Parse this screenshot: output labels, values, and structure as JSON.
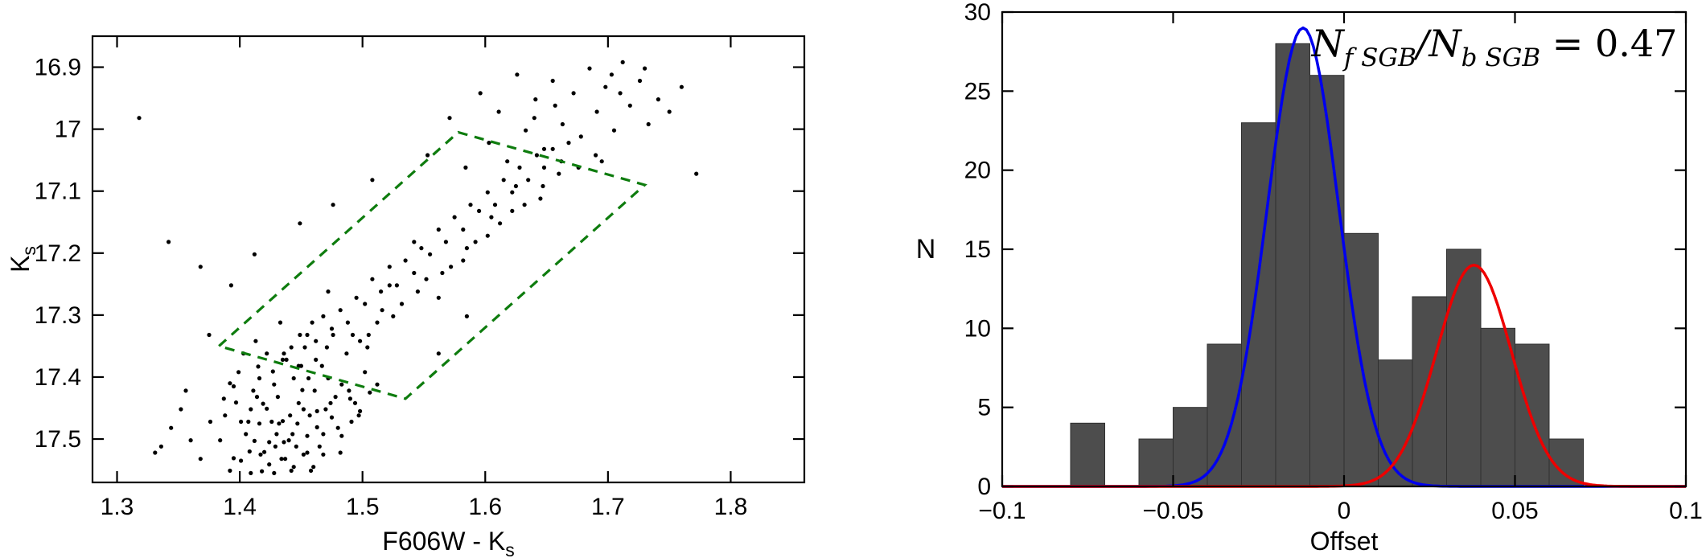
{
  "figure": {
    "background": "#ffffff"
  },
  "chart_data": [
    {
      "id": "cmd",
      "type": "scatter",
      "title": "",
      "xlabel_pre": "F606W - K",
      "xlabel_sub": "s",
      "ylabel_pre": "K",
      "ylabel_sub": "s",
      "xlim": [
        1.28,
        1.86
      ],
      "ylim": [
        16.85,
        17.57
      ],
      "y_axis_inverted": true,
      "x_ticks": [
        1.3,
        1.4,
        1.5,
        1.6,
        1.7,
        1.8
      ],
      "x_tick_labels": [
        "1.3",
        "1.4",
        "1.5",
        "1.6",
        "1.7",
        "1.8"
      ],
      "y_ticks": [
        16.9,
        17.0,
        17.1,
        17.2,
        17.3,
        17.4,
        17.5
      ],
      "y_tick_labels": [
        "16.9",
        "17",
        "17.1",
        "17.2",
        "17.3",
        "17.4",
        "17.5"
      ],
      "marker_color": "#000000",
      "selection_region": {
        "name": "sgb-selection-box",
        "color": "#0e7c0e",
        "dashed": true,
        "corners": [
          [
            1.383,
            17.35
          ],
          [
            1.578,
            17.005
          ],
          [
            1.73,
            17.09
          ],
          [
            1.535,
            17.435
          ]
        ]
      },
      "points": [
        [
          1.392,
          17.41
        ],
        [
          1.401,
          17.472
        ],
        [
          1.408,
          17.52
        ],
        [
          1.415,
          17.383
        ],
        [
          1.422,
          17.451
        ],
        [
          1.429,
          17.512
        ],
        [
          1.436,
          17.362
        ],
        [
          1.443,
          17.492
        ],
        [
          1.451,
          17.421
        ],
        [
          1.458,
          17.551
        ],
        [
          1.412,
          17.503
        ],
        [
          1.419,
          17.443
        ],
        [
          1.427,
          17.391
        ],
        [
          1.434,
          17.532
        ],
        [
          1.441,
          17.462
        ],
        [
          1.449,
          17.332
        ],
        [
          1.456,
          17.402
        ],
        [
          1.463,
          17.481
        ],
        [
          1.471,
          17.352
        ],
        [
          1.478,
          17.432
        ],
        [
          1.403,
          17.362
        ],
        [
          1.411,
          17.422
        ],
        [
          1.418,
          17.552
        ],
        [
          1.426,
          17.472
        ],
        [
          1.433,
          17.312
        ],
        [
          1.44,
          17.502
        ],
        [
          1.448,
          17.442
        ],
        [
          1.455,
          17.522
        ],
        [
          1.462,
          17.372
        ],
        [
          1.47,
          17.452
        ],
        [
          1.397,
          17.441
        ],
        [
          1.405,
          17.492
        ],
        [
          1.413,
          17.342
        ],
        [
          1.42,
          17.521
        ],
        [
          1.428,
          17.412
        ],
        [
          1.435,
          17.471
        ],
        [
          1.442,
          17.551
        ],
        [
          1.45,
          17.382
        ],
        [
          1.457,
          17.462
        ],
        [
          1.465,
          17.512
        ],
        [
          1.472,
          17.402
        ],
        [
          1.48,
          17.482
        ],
        [
          1.487,
          17.362
        ],
        [
          1.494,
          17.442
        ],
        [
          1.502,
          17.392
        ],
        [
          1.388,
          17.462
        ],
        [
          1.395,
          17.531
        ],
        [
          1.409,
          17.452
        ],
        [
          1.416,
          17.402
        ],
        [
          1.424,
          17.541
        ],
        [
          1.431,
          17.432
        ],
        [
          1.438,
          17.372
        ],
        [
          1.446,
          17.512
        ],
        [
          1.453,
          17.352
        ],
        [
          1.461,
          17.422
        ],
        [
          1.468,
          17.492
        ],
        [
          1.476,
          17.332
        ],
        [
          1.483,
          17.412
        ],
        [
          1.491,
          17.472
        ],
        [
          1.498,
          17.342
        ],
        [
          1.384,
          17.502
        ],
        [
          1.392,
          17.551
        ],
        [
          1.399,
          17.392
        ],
        [
          1.407,
          17.472
        ],
        [
          1.414,
          17.432
        ],
        [
          1.422,
          17.362
        ],
        [
          1.43,
          17.492
        ],
        [
          1.437,
          17.532
        ],
        [
          1.444,
          17.402
        ],
        [
          1.452,
          17.452
        ],
        [
          1.459,
          17.312
        ],
        [
          1.467,
          17.382
        ],
        [
          1.474,
          17.442
        ],
        [
          1.482,
          17.522
        ],
        [
          1.489,
          17.422
        ],
        [
          1.497,
          17.462
        ],
        [
          1.504,
          17.352
        ],
        [
          1.512,
          17.412
        ],
        [
          1.444,
          17.545
        ],
        [
          1.436,
          17.505
        ],
        [
          1.428,
          17.555
        ],
        [
          1.452,
          17.525
        ],
        [
          1.46,
          17.545
        ],
        [
          1.468,
          17.525
        ],
        [
          1.432,
          17.475
        ],
        [
          1.424,
          17.505
        ],
        [
          1.416,
          17.475
        ],
        [
          1.447,
          17.475
        ],
        [
          1.455,
          17.495
        ],
        [
          1.463,
          17.455
        ],
        [
          1.475,
          17.465
        ],
        [
          1.483,
          17.495
        ],
        [
          1.49,
          17.435
        ],
        [
          1.498,
          17.455
        ],
        [
          1.506,
          17.425
        ],
        [
          1.401,
          17.535
        ],
        [
          1.409,
          17.555
        ],
        [
          1.417,
          17.525
        ],
        [
          1.395,
          17.415
        ],
        [
          1.387,
          17.435
        ],
        [
          1.352,
          17.452
        ],
        [
          1.36,
          17.502
        ],
        [
          1.368,
          17.532
        ],
        [
          1.344,
          17.482
        ],
        [
          1.376,
          17.472
        ],
        [
          1.336,
          17.512
        ],
        [
          1.435,
          17.372
        ],
        [
          1.442,
          17.352
        ],
        [
          1.448,
          17.382
        ],
        [
          1.455,
          17.332
        ],
        [
          1.462,
          17.342
        ],
        [
          1.468,
          17.302
        ],
        [
          1.475,
          17.322
        ],
        [
          1.482,
          17.292
        ],
        [
          1.488,
          17.312
        ],
        [
          1.495,
          17.272
        ],
        [
          1.502,
          17.282
        ],
        [
          1.508,
          17.242
        ],
        [
          1.515,
          17.262
        ],
        [
          1.522,
          17.222
        ],
        [
          1.528,
          17.252
        ],
        [
          1.535,
          17.212
        ],
        [
          1.542,
          17.232
        ],
        [
          1.548,
          17.192
        ],
        [
          1.555,
          17.202
        ],
        [
          1.562,
          17.162
        ],
        [
          1.568,
          17.182
        ],
        [
          1.575,
          17.142
        ],
        [
          1.582,
          17.162
        ],
        [
          1.588,
          17.122
        ],
        [
          1.595,
          17.132
        ],
        [
          1.602,
          17.102
        ],
        [
          1.608,
          17.122
        ],
        [
          1.615,
          17.082
        ],
        [
          1.622,
          17.102
        ],
        [
          1.628,
          17.062
        ],
        [
          1.635,
          17.082
        ],
        [
          1.642,
          17.042
        ],
        [
          1.648,
          17.062
        ],
        [
          1.655,
          17.032
        ],
        [
          1.662,
          17.052
        ],
        [
          1.668,
          17.022
        ],
        [
          1.472,
          17.262
        ],
        [
          1.492,
          17.332
        ],
        [
          1.512,
          17.312
        ],
        [
          1.532,
          17.282
        ],
        [
          1.552,
          17.242
        ],
        [
          1.572,
          17.222
        ],
        [
          1.592,
          17.182
        ],
        [
          1.612,
          17.152
        ],
        [
          1.632,
          17.122
        ],
        [
          1.522,
          17.252
        ],
        [
          1.542,
          17.182
        ],
        [
          1.562,
          17.272
        ],
        [
          1.582,
          17.212
        ],
        [
          1.602,
          17.172
        ],
        [
          1.622,
          17.132
        ],
        [
          1.505,
          17.332
        ],
        [
          1.525,
          17.302
        ],
        [
          1.545,
          17.262
        ],
        [
          1.565,
          17.232
        ],
        [
          1.585,
          17.192
        ],
        [
          1.605,
          17.142
        ],
        [
          1.625,
          17.092
        ],
        [
          1.645,
          17.112
        ],
        [
          1.516,
          17.292
        ],
        [
          1.553,
          17.042
        ],
        [
          1.571,
          16.982
        ],
        [
          1.584,
          17.062
        ],
        [
          1.596,
          16.942
        ],
        [
          1.603,
          17.022
        ],
        [
          1.611,
          16.972
        ],
        [
          1.618,
          17.052
        ],
        [
          1.626,
          16.912
        ],
        [
          1.633,
          17.002
        ],
        [
          1.641,
          16.952
        ],
        [
          1.648,
          17.032
        ],
        [
          1.655,
          16.922
        ],
        [
          1.663,
          16.992
        ],
        [
          1.672,
          16.942
        ],
        [
          1.678,
          17.012
        ],
        [
          1.685,
          16.902
        ],
        [
          1.691,
          16.972
        ],
        [
          1.698,
          16.932
        ],
        [
          1.705,
          17.002
        ],
        [
          1.712,
          16.892
        ],
        [
          1.718,
          16.962
        ],
        [
          1.726,
          16.922
        ],
        [
          1.733,
          16.992
        ],
        [
          1.741,
          16.952
        ],
        [
          1.703,
          16.912
        ],
        [
          1.69,
          17.042
        ],
        [
          1.66,
          17.072
        ],
        [
          1.64,
          16.982
        ],
        [
          1.71,
          16.942
        ],
        [
          1.73,
          16.902
        ],
        [
          1.75,
          16.972
        ],
        [
          1.76,
          16.932
        ],
        [
          1.647,
          17.092
        ],
        [
          1.657,
          16.962
        ],
        [
          1.676,
          17.062
        ],
        [
          1.695,
          17.052
        ],
        [
          1.318,
          16.982
        ],
        [
          1.342,
          17.182
        ],
        [
          1.356,
          17.422
        ],
        [
          1.368,
          17.222
        ],
        [
          1.331,
          17.522
        ],
        [
          1.449,
          17.152
        ],
        [
          1.476,
          17.122
        ],
        [
          1.508,
          17.082
        ],
        [
          1.393,
          17.252
        ],
        [
          1.375,
          17.332
        ],
        [
          1.772,
          17.072
        ],
        [
          1.562,
          17.362
        ],
        [
          1.585,
          17.302
        ],
        [
          1.412,
          17.202
        ]
      ]
    },
    {
      "id": "offset_hist",
      "type": "bar",
      "title": "",
      "xlabel": "Offset",
      "ylabel": "N",
      "xlim": [
        -0.1,
        0.1
      ],
      "ylim": [
        0,
        30
      ],
      "x_ticks": [
        -0.1,
        -0.05,
        0,
        0.05,
        0.1
      ],
      "x_tick_labels": [
        "−0.1",
        "−0.05",
        "0",
        "0.05",
        "0.1"
      ],
      "y_ticks": [
        0,
        5,
        10,
        15,
        20,
        25,
        30
      ],
      "y_tick_labels": [
        "0",
        "5",
        "10",
        "15",
        "20",
        "25",
        "30"
      ],
      "bar_color": "#4d4d4d",
      "bar_edge_color": "#303030",
      "bin_width": 0.01,
      "bin_centers": [
        -0.075,
        -0.065,
        -0.055,
        -0.045,
        -0.035,
        -0.025,
        -0.015,
        -0.005,
        0.005,
        0.015,
        0.025,
        0.035,
        0.045,
        0.055,
        0.065
      ],
      "counts": [
        4,
        0,
        3,
        5,
        9,
        23,
        28,
        26,
        16,
        8,
        12,
        15,
        10,
        9,
        3
      ],
      "curves": [
        {
          "name": "fSGB-gaussian",
          "color": "#0000ee",
          "amplitude": 29,
          "mean": -0.012,
          "sigma": 0.0105
        },
        {
          "name": "bSGB-gaussian",
          "color": "#ee0000",
          "amplitude": 14,
          "mean": 0.038,
          "sigma": 0.011
        }
      ],
      "annotation": {
        "plain": "N_fSGB / N_bSGB = 0.47",
        "n1": "N",
        "sub1": "f SGB",
        "slash": "/",
        "n2": "N",
        "sub2": "b SGB",
        "rhs": " = 0.47",
        "ratio_value": 0.47
      }
    }
  ]
}
